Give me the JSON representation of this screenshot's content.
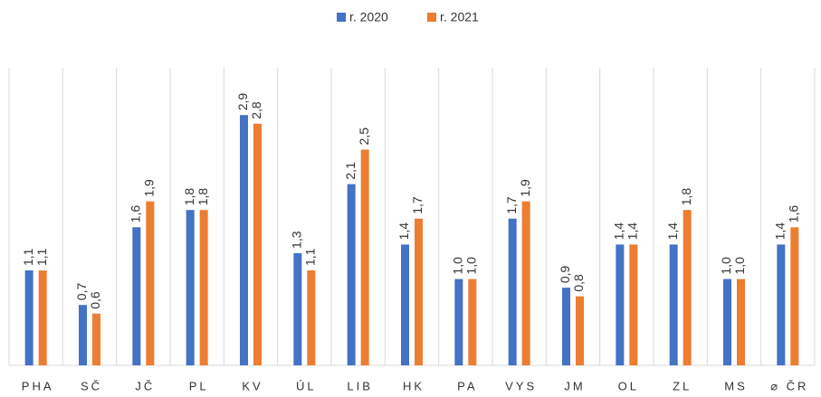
{
  "chart_data": {
    "type": "bar",
    "categories": [
      "PHA",
      "SČ",
      "JČ",
      "PL",
      "KV",
      "ÚL",
      "LIB",
      "HK",
      "PA",
      "VYS",
      "JM",
      "OL",
      "ZL",
      "MS",
      "⌀ ČR"
    ],
    "series": [
      {
        "name": "r. 2020",
        "color": "#4472c4",
        "values": [
          1.1,
          0.7,
          1.6,
          1.8,
          2.9,
          1.3,
          2.1,
          1.4,
          1.0,
          1.7,
          0.9,
          1.4,
          1.4,
          1.0,
          1.4
        ],
        "value_labels": [
          "1,1",
          "0,7",
          "1,6",
          "1,8",
          "2,9",
          "1,3",
          "2,1",
          "1,4",
          "1,0",
          "1,7",
          "0,9",
          "1,4",
          "1,4",
          "1,0",
          "1,4"
        ]
      },
      {
        "name": "r. 2021",
        "color": "#ed7d31",
        "values": [
          1.1,
          0.6,
          1.9,
          1.8,
          2.8,
          1.1,
          2.5,
          1.7,
          1.0,
          1.9,
          0.8,
          1.4,
          1.8,
          1.0,
          1.6
        ],
        "value_labels": [
          "1,1",
          "0,6",
          "1,9",
          "1,8",
          "2,8",
          "1,1",
          "2,5",
          "1,7",
          "1,0",
          "1,9",
          "0,8",
          "1,4",
          "1,8",
          "1,0",
          "1,6"
        ]
      }
    ],
    "ylim": [
      0,
      3.5
    ],
    "legend": "top"
  }
}
